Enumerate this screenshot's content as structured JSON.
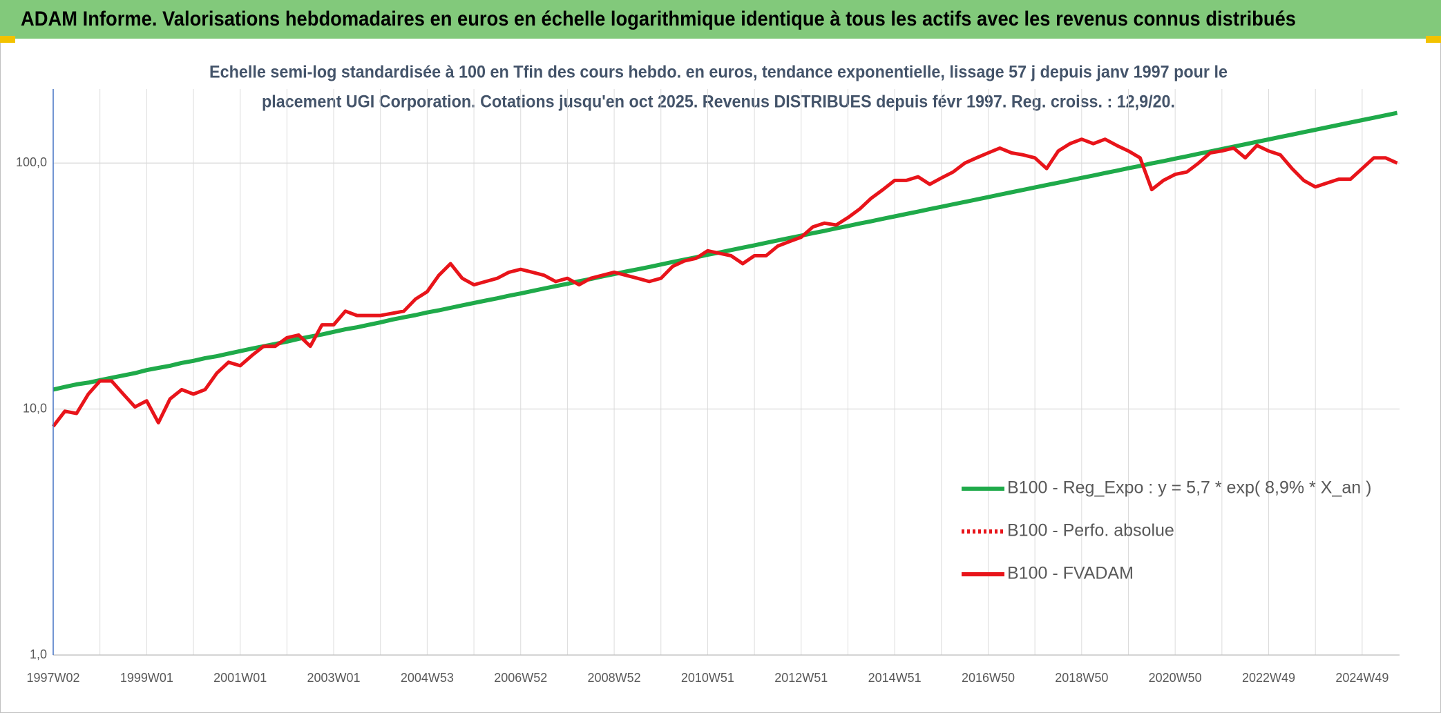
{
  "chart_data": {
    "type": "line",
    "title": "ADAM Informe. Valorisations hebdomadaires en euros en échelle logarithmique identique à tous les actifs avec les revenus connus distribués",
    "subtitle": [
      "Echelle semi-log standardisée à 100 en Tfin des cours hebdo. en euros, tendance exponentielle, lissage 57 j depuis janv 1997 pour le",
      "placement UGI Corporation. Cotations jusqu'en oct 2025. Revenus DISTRIBUES depuis févr 1997. Reg. croiss. : 12,9/20."
    ],
    "categories": [
      "1997W02",
      null,
      null,
      null,
      null,
      null,
      null,
      null,
      "1999W01",
      null,
      null,
      null,
      null,
      null,
      null,
      null,
      "2001W01",
      null,
      null,
      null,
      null,
      null,
      null,
      null,
      "2003W01",
      null,
      null,
      null,
      null,
      null,
      null,
      null,
      "2004W53",
      null,
      null,
      null,
      null,
      null,
      null,
      null,
      "2006W52",
      null,
      null,
      null,
      null,
      null,
      null,
      null,
      "2008W52",
      null,
      null,
      null,
      null,
      null,
      null,
      null,
      "2010W51",
      null,
      null,
      null,
      null,
      null,
      null,
      null,
      "2012W51",
      null,
      null,
      null,
      null,
      null,
      null,
      null,
      "2014W51",
      null,
      null,
      null,
      null,
      null,
      null,
      null,
      "2016W50",
      null,
      null,
      null,
      null,
      null,
      null,
      null,
      "2018W50",
      null,
      null,
      null,
      null,
      null,
      null,
      null,
      "2020W50",
      null,
      null,
      null,
      null,
      null,
      null,
      null,
      "2022W49",
      null,
      null,
      null,
      null,
      null,
      null,
      null,
      "2024W49",
      null,
      null,
      null
    ],
    "series": [
      {
        "name": "B100 - Reg_Expo : y = 5,7 * exp( 8,9% *  X_an )",
        "color": "#1faa4a",
        "dash": "solid",
        "values": [
          12.0,
          12.3,
          12.6,
          12.8,
          13.1,
          13.4,
          13.7,
          14.0,
          14.4,
          14.7,
          15.0,
          15.4,
          15.7,
          16.1,
          16.4,
          16.8,
          17.2,
          17.6,
          18.0,
          18.4,
          18.8,
          19.3,
          19.7,
          20.1,
          20.6,
          21.1,
          21.5,
          22.0,
          22.5,
          23.1,
          23.6,
          24.1,
          24.7,
          25.2,
          25.8,
          26.4,
          27.0,
          27.6,
          28.2,
          28.9,
          29.5,
          30.2,
          30.9,
          31.6,
          32.3,
          33.1,
          33.8,
          34.6,
          35.4,
          36.2,
          37.0,
          37.8,
          38.7,
          39.6,
          40.5,
          41.4,
          42.4,
          43.3,
          44.3,
          45.3,
          46.3,
          47.4,
          48.5,
          49.6,
          50.7,
          51.9,
          53.0,
          54.3,
          55.5,
          56.8,
          58.0,
          59.4,
          60.7,
          62.1,
          63.5,
          65.0,
          66.4,
          68.0,
          69.5,
          71.1,
          72.7,
          74.4,
          76.1,
          77.8,
          79.6,
          81.4,
          83.2,
          85.1,
          87.1,
          89.0,
          91.1,
          93.1,
          95.3,
          97.4,
          99.7,
          101.9,
          104.3,
          106.6,
          109.1,
          111.5,
          114.1,
          116.7,
          119.3,
          122.1,
          124.8,
          127.7,
          130.6,
          133.6,
          136.6,
          139.7,
          142.9,
          146.2,
          149.5,
          152.9,
          156.4,
          159.9
        ]
      },
      {
        "name": "B100 - Perfo. absolue",
        "color": "#e8141a",
        "dash": "dotted",
        "values": [
          null,
          null,
          null,
          null,
          null,
          null,
          null,
          null,
          null,
          null,
          null,
          null,
          null,
          null,
          null,
          null,
          null,
          null,
          null,
          null,
          null,
          null,
          null,
          null,
          null,
          null,
          null,
          null,
          null,
          null,
          null,
          null,
          null,
          null,
          null,
          null,
          null,
          null,
          null,
          null,
          null,
          null,
          null,
          null,
          null,
          null,
          null,
          null,
          null,
          null,
          null,
          null,
          null,
          null,
          null,
          null,
          null,
          null,
          null,
          null,
          null,
          null,
          null,
          null,
          null,
          null,
          null,
          null,
          null,
          null,
          null,
          null,
          null,
          null,
          null,
          null,
          null,
          null,
          null,
          null,
          null,
          null,
          null,
          null,
          null,
          null,
          null,
          null,
          null,
          null,
          null,
          null,
          null,
          null,
          null,
          null,
          null,
          null,
          null,
          null,
          null,
          null,
          null,
          null,
          null,
          null,
          null,
          null,
          null,
          null,
          null,
          null,
          null,
          null,
          null,
          null
        ]
      },
      {
        "name": "B100 - FVADAM",
        "color": "#e8141a",
        "dash": "solid",
        "values": [
          8.5,
          9.8,
          9.6,
          11.5,
          13,
          13,
          11.5,
          10.2,
          10.8,
          8.8,
          11,
          12,
          11.5,
          12,
          14,
          15.5,
          15,
          16.5,
          18,
          18,
          19.5,
          20,
          18,
          22,
          22,
          25,
          24,
          24,
          24,
          24.5,
          25,
          28,
          30,
          35,
          39,
          34,
          32,
          33,
          34,
          36,
          37,
          36,
          35,
          33,
          34,
          32,
          34,
          35,
          36,
          35,
          34,
          33,
          34,
          38,
          40,
          41,
          44,
          43,
          42,
          39,
          42,
          42,
          46,
          48,
          50,
          55,
          57,
          56,
          60,
          65,
          72,
          78,
          85,
          85,
          88,
          82,
          87,
          92,
          100,
          105,
          110,
          115,
          110,
          108,
          105,
          95,
          112,
          120,
          125,
          120,
          125,
          118,
          112,
          105,
          78,
          85,
          90,
          92,
          100,
          110,
          112,
          115,
          105,
          118,
          112,
          108,
          95,
          85,
          80,
          83,
          86,
          86,
          95,
          105,
          105,
          100
        ]
      }
    ],
    "log_y": true,
    "ylim": [
      1,
      200
    ],
    "yticks": [
      {
        "value": 1,
        "label": "1,0"
      },
      {
        "value": 10,
        "label": "10,0"
      },
      {
        "value": 100,
        "label": "100,0"
      }
    ],
    "grid": true,
    "legend": "right"
  }
}
